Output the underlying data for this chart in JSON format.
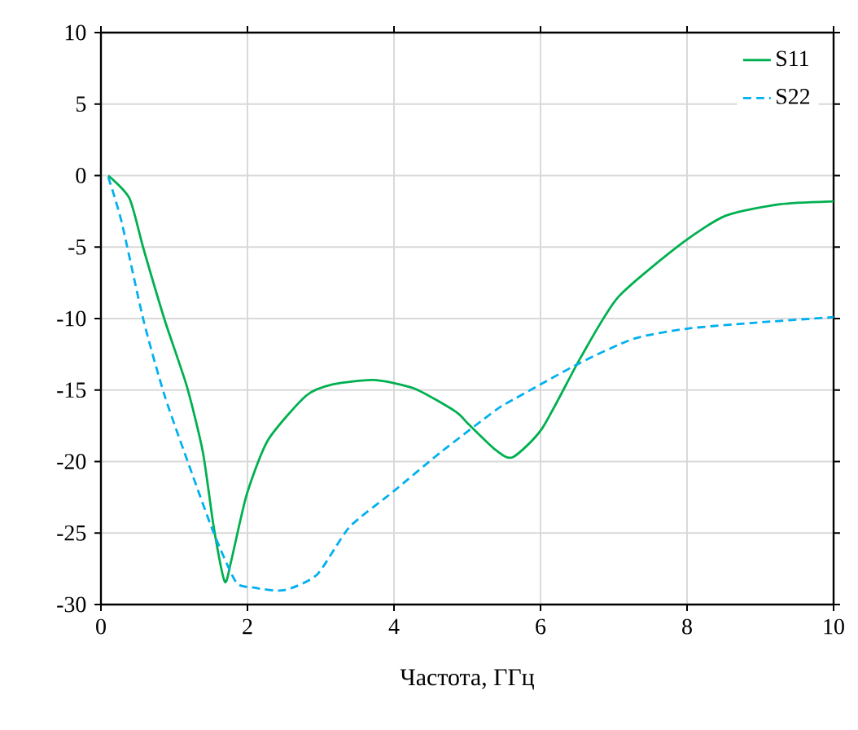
{
  "chart_data": {
    "type": "line",
    "xlabel": "Частота, ГГц",
    "xlim": [
      0,
      10
    ],
    "ylim": [
      -30,
      10
    ],
    "xticks": [
      0,
      2,
      4,
      6,
      8,
      10
    ],
    "yticks": [
      -30,
      -25,
      -20,
      -15,
      -10,
      -5,
      0,
      5,
      10
    ],
    "grid": true,
    "legend": "top right",
    "marker": "none",
    "series": [
      {
        "name": "S11",
        "color": "#00b050",
        "line_style": "solid",
        "x": [
          0.1,
          0.39,
          0.58,
          0.87,
          1.17,
          1.39,
          1.54,
          1.69,
          1.78,
          1.99,
          2.28,
          2.8,
          3.17,
          3.73,
          4.28,
          4.84,
          5.02,
          5.39,
          5.62,
          6.02,
          6.54,
          7.06,
          7.94,
          8.53,
          9.27,
          10
        ],
        "values": [
          0,
          -1.6,
          -5.1,
          -10.1,
          -14.7,
          -19.3,
          -24.6,
          -28.4,
          -26.9,
          -22.3,
          -18.5,
          -15.4,
          -14.6,
          -14.3,
          -14.9,
          -16.5,
          -17.4,
          -19.2,
          -19.7,
          -17.7,
          -12.8,
          -8.5,
          -4.7,
          -2.8,
          -2,
          -1.8
        ]
      },
      {
        "name": "S22",
        "color": "#00b0f0",
        "line_style": "dashed",
        "x": [
          0.1,
          0.28,
          0.58,
          0.87,
          1.24,
          1.54,
          1.84,
          2.06,
          2.5,
          2.95,
          3.39,
          3.99,
          4.65,
          5.39,
          5.58,
          6.54,
          7.28,
          8.01,
          8.9,
          10
        ],
        "values": [
          -0.1,
          -3.2,
          -10.1,
          -15.4,
          -20.8,
          -25,
          -28.4,
          -28.8,
          -29,
          -27.9,
          -24.6,
          -22.1,
          -19.3,
          -16.4,
          -15.8,
          -13.1,
          -11.4,
          -10.7,
          -10.3,
          -9.9
        ]
      }
    ]
  }
}
